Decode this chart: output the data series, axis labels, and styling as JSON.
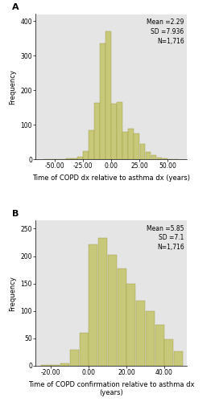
{
  "panel_A": {
    "annotation": "Mean =2.29\nSD =7.936\nN=1,716",
    "xlabel": "Time of COPD dx relative to asthma dx (years)",
    "ylabel": "Frequency",
    "xlim": [
      -67,
      67
    ],
    "xticks": [
      -50,
      -25,
      0,
      25,
      50
    ],
    "xtick_labels": [
      "-50.00",
      "-25.00",
      "0.00",
      "25.00",
      "50.00"
    ],
    "ylim": [
      0,
      420
    ],
    "yticks": [
      0,
      100,
      200,
      300,
      400
    ],
    "bar_centers": [
      -57.5,
      -52.5,
      -47.5,
      -42.5,
      -37.5,
      -32.5,
      -27.5,
      -22.5,
      -17.5,
      -12.5,
      -7.5,
      -2.5,
      2.5,
      7.5,
      12.5,
      17.5,
      22.5,
      27.5,
      32.5,
      37.5,
      42.5,
      47.5,
      52.5,
      57.5
    ],
    "bar_heights": [
      0,
      1,
      1,
      1,
      2,
      4,
      8,
      25,
      85,
      163,
      335,
      370,
      160,
      165,
      80,
      88,
      75,
      45,
      22,
      12,
      6,
      2,
      1,
      0
    ],
    "bar_width": 4.7,
    "bar_color": "#c8c87a",
    "bar_edgecolor": "#9a9a40",
    "label": "A"
  },
  "panel_B": {
    "annotation": "Mean =5.85\nSD =7.1\nN=1,716",
    "xlabel": "Time of COPD confirmation relative to asthma dx\n(years)",
    "ylabel": "Frequency",
    "xlim": [
      -28,
      52
    ],
    "xticks": [
      -20,
      0,
      20,
      40
    ],
    "xtick_labels": [
      "-20.00",
      "0.00",
      "20.00",
      "40.00"
    ],
    "ylim": [
      0,
      265
    ],
    "yticks": [
      0,
      50,
      100,
      150,
      200,
      250
    ],
    "bar_centers": [
      -22.5,
      -17.5,
      -12.5,
      -7.5,
      -2.5,
      2.5,
      7.5,
      12.5,
      17.5,
      22.5,
      27.5,
      32.5,
      37.5,
      42.5,
      47.5
    ],
    "bar_heights": [
      1,
      1,
      5,
      30,
      60,
      222,
      233,
      202,
      178,
      150,
      118,
      100,
      75,
      48,
      26
    ],
    "bar_width": 4.7,
    "bar_color": "#c8c87a",
    "bar_edgecolor": "#9a9a40",
    "label": "B"
  },
  "bg_color": "#e5e5e5",
  "annotation_fontsize": 5.5,
  "axis_label_fontsize": 6.0,
  "tick_fontsize": 5.5,
  "label_fontsize": 8,
  "fig_bg": "#ffffff"
}
